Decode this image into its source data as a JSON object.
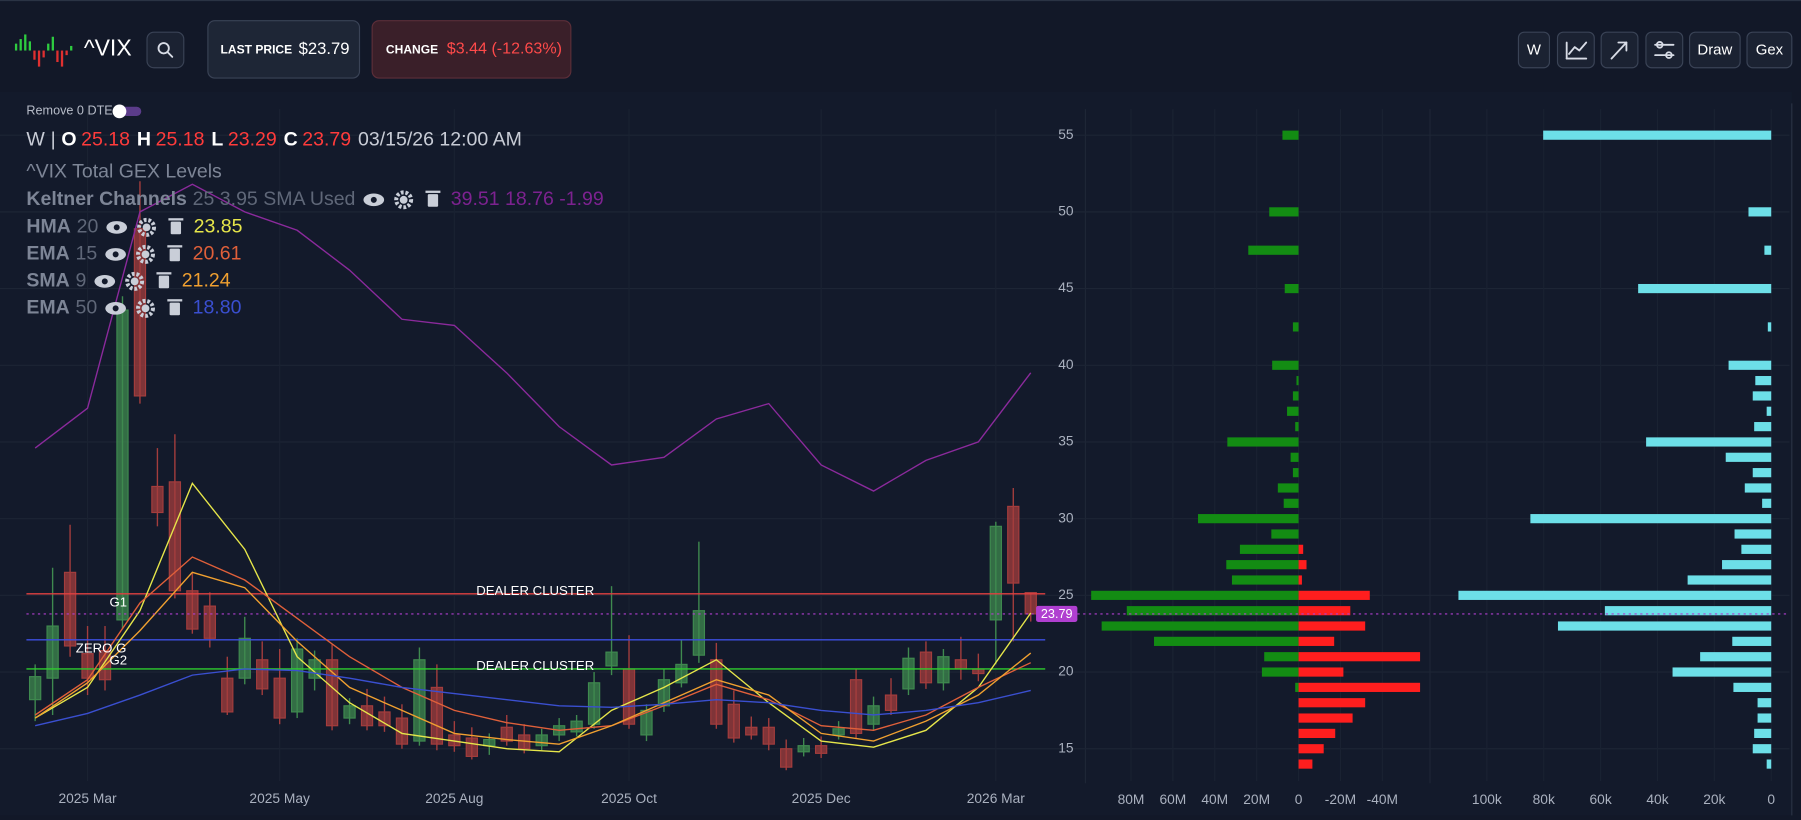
{
  "header": {
    "symbol": "^VIX",
    "last_price_label": "LAST PRICE",
    "last_price": "$23.79",
    "change_label": "CHANGE",
    "change": "$3.44 (-12.63%)",
    "buttons": [
      "W",
      "Draw",
      "Gex"
    ]
  },
  "toggle": "Remove 0 DTE",
  "ohlc": {
    "interval": "W",
    "separator": "|",
    "items": [
      {
        "label": "O",
        "value": "25.18"
      },
      {
        "label": "H",
        "value": "25.18"
      },
      {
        "label": "L",
        "value": "23.29"
      },
      {
        "label": "C",
        "value": "23.79"
      }
    ],
    "datetime": "03/15/26 12:00 AM"
  },
  "legend": {
    "title": "^VIX Total GEX Levels",
    "keltner": {
      "name": "Keltner Channels",
      "params": "25 3.95 SMA Used",
      "values": "39.51 18.76 -1.99",
      "color": "#7d2290"
    },
    "indicators": [
      {
        "name": "HMA",
        "period": "20",
        "value": "23.85",
        "color": "#e6e64a"
      },
      {
        "name": "EMA",
        "period": "15",
        "value": "20.61",
        "color": "#e0603a"
      },
      {
        "name": "SMA",
        "period": "9",
        "value": "21.24",
        "color": "#f0a030"
      },
      {
        "name": "EMA",
        "period": "50",
        "value": "18.80",
        "color": "#3a4fd0"
      }
    ]
  },
  "chart_data": [
    {
      "type": "candlestick",
      "categories": [
        null,
        null,
        null,
        "2025 Mar",
        null,
        null,
        null,
        null,
        null,
        null,
        null,
        null,
        null,
        null,
        "2025 May",
        null,
        null,
        null,
        null,
        null,
        null,
        null,
        null,
        null,
        "2025 Aug",
        null,
        null,
        null,
        null,
        null,
        null,
        null,
        null,
        null,
        "2025 Oct",
        null,
        null,
        null,
        null,
        null,
        null,
        null,
        null,
        null,
        null,
        "2025 Dec",
        null,
        null,
        null,
        null,
        null,
        null,
        null,
        null,
        null,
        "2026 Mar",
        null,
        null
      ],
      "open": [
        18.2,
        19.6,
        26.5,
        21.2,
        21.4,
        23.4,
        48.9,
        32.1,
        32.4,
        25.3,
        24.3,
        19.6,
        19.6,
        20.8,
        19.6,
        17.4,
        19.6,
        20.8,
        17.0,
        17.8,
        17.4,
        17.0,
        15.5,
        19.0,
        15.9,
        15.7,
        15.2,
        16.4,
        15.9,
        15.2,
        15.9,
        16.1,
        16.6,
        20.4,
        20.2,
        15.9,
        17.8,
        19.3,
        21.1,
        20.8,
        17.9,
        16.4,
        16.4,
        15.0,
        14.8,
        15.2,
        15.9,
        19.5,
        16.6,
        18.5,
        18.9,
        21.3,
        19.3,
        20.8,
        20.2,
        23.4,
        30.8,
        25.18
      ],
      "high": [
        20.5,
        26.8,
        29.6,
        23.0,
        23.0,
        44.5,
        52.0,
        34.6,
        35.5,
        26.5,
        25.2,
        21.0,
        23.6,
        22.0,
        21.5,
        22.2,
        21.4,
        21.8,
        18.3,
        18.9,
        18.4,
        17.9,
        21.6,
        20.5,
        16.8,
        16.4,
        16.0,
        17.2,
        16.6,
        16.3,
        17.0,
        17.2,
        20.0,
        25.6,
        22.4,
        17.9,
        20.2,
        22.1,
        28.5,
        21.9,
        18.8,
        17.1,
        17.0,
        15.6,
        15.7,
        15.8,
        16.8,
        20.2,
        18.4,
        19.6,
        21.6,
        22.0,
        21.5,
        22.3,
        21.2,
        29.8,
        32.0,
        25.18
      ],
      "low": [
        16.8,
        17.2,
        21.0,
        18.5,
        18.8,
        22.8,
        37.5,
        29.5,
        24.8,
        22.5,
        21.6,
        17.2,
        19.2,
        18.5,
        16.6,
        17.0,
        18.8,
        16.2,
        16.6,
        16.2,
        16.1,
        15.0,
        15.2,
        14.9,
        14.8,
        14.3,
        14.6,
        15.2,
        14.7,
        14.9,
        15.5,
        15.8,
        16.3,
        19.8,
        16.3,
        15.5,
        17.4,
        19.0,
        20.6,
        16.3,
        15.4,
        15.6,
        14.9,
        13.6,
        14.5,
        14.4,
        15.6,
        15.7,
        16.2,
        17.2,
        18.5,
        18.9,
        18.8,
        19.5,
        19.4,
        20.5,
        22.0,
        23.29
      ],
      "close": [
        19.7,
        23.0,
        21.7,
        19.6,
        19.5,
        43.6,
        38.0,
        30.4,
        25.3,
        22.8,
        22.2,
        17.4,
        22.2,
        18.9,
        17.0,
        21.5,
        20.8,
        16.5,
        17.8,
        16.5,
        16.5,
        15.3,
        20.8,
        15.3,
        15.2,
        14.5,
        15.6,
        15.5,
        15.0,
        15.9,
        16.5,
        16.8,
        19.3,
        21.3,
        16.6,
        17.5,
        19.5,
        20.5,
        24.0,
        16.6,
        15.7,
        15.9,
        15.3,
        13.8,
        15.2,
        14.7,
        16.3,
        16.0,
        17.8,
        17.5,
        20.9,
        19.3,
        21.0,
        20.2,
        19.9,
        29.5,
        25.8,
        23.79
      ],
      "up_color": "#3f8a4f",
      "down_color": "#a43d3d",
      "ylim": [
        12.9,
        56.7
      ],
      "yticks": [
        15,
        20,
        25,
        30,
        35,
        40,
        45,
        50,
        55
      ],
      "grid": true,
      "series": [
        {
          "color": "#8b2a9c",
          "x": [
            0,
            3,
            6,
            9,
            12,
            15,
            18,
            21,
            24,
            27,
            30,
            33,
            36,
            39,
            42,
            45,
            48,
            51,
            54,
            57
          ],
          "values": [
            34.6,
            37.2,
            50,
            51.8,
            50,
            48.8,
            46.2,
            43,
            42.6,
            39.5,
            36,
            33.5,
            34,
            36.5,
            37.5,
            33.5,
            31.8,
            33.8,
            35,
            39.51
          ]
        },
        {
          "color": "#e6e64a",
          "x": [
            0,
            3,
            6,
            9,
            12,
            15,
            18,
            21,
            24,
            27,
            30,
            33,
            36,
            39,
            42,
            45,
            48,
            51,
            54,
            57
          ],
          "values": [
            17,
            19,
            24,
            32.3,
            28,
            21,
            18,
            16,
            15.5,
            15,
            14.8,
            17.5,
            19,
            20.8,
            18,
            15.5,
            15.1,
            16.2,
            19,
            23.85
          ]
        },
        {
          "color": "#e0603a",
          "x": [
            0,
            3,
            6,
            9,
            12,
            15,
            18,
            21,
            24,
            27,
            30,
            33,
            36,
            39,
            42,
            45,
            48,
            51,
            54,
            57
          ],
          "values": [
            17.2,
            19.5,
            24.5,
            27.5,
            26,
            23.5,
            21,
            19,
            17.5,
            16.7,
            16.2,
            16.5,
            17.8,
            19.2,
            18.2,
            16.5,
            16.2,
            17.2,
            19,
            20.61
          ]
        },
        {
          "color": "#f0a030",
          "x": [
            0,
            3,
            6,
            9,
            12,
            15,
            18,
            21,
            24,
            27,
            30,
            33,
            36,
            39,
            42,
            45,
            48,
            51,
            54,
            57
          ],
          "values": [
            17,
            19.3,
            22.7,
            26.5,
            25.5,
            22,
            19,
            17.5,
            16,
            15.6,
            15.3,
            16.5,
            18,
            19.5,
            18.5,
            16,
            15.5,
            16.8,
            18.5,
            21.24
          ]
        },
        {
          "color": "#3a4fd0",
          "x": [
            0,
            3,
            6,
            9,
            12,
            15,
            18,
            21,
            24,
            27,
            30,
            33,
            36,
            39,
            42,
            45,
            48,
            51,
            54,
            57
          ],
          "values": [
            16.5,
            17.3,
            18.5,
            19.8,
            20.2,
            20.1,
            19.6,
            19,
            18.6,
            18.2,
            17.8,
            17.7,
            17.9,
            18.2,
            18,
            17.5,
            17.2,
            17.5,
            18,
            18.8
          ]
        }
      ],
      "levels": [
        {
          "name": "G1",
          "value": 25.1,
          "color": "#e04040",
          "label": "DEALER CLUSTER"
        },
        {
          "name": "ZERO G",
          "value": 22.1,
          "color": "#3d4fe0"
        },
        {
          "name": "G2",
          "value": 20.2,
          "color": "#2ecc2e",
          "label": "DEALER CLUSTER"
        }
      ],
      "last": 23.79,
      "last_color": "#b03fd0"
    },
    {
      "type": "barh",
      "y": [
        55,
        50,
        47.5,
        45,
        42.5,
        40,
        39,
        38,
        37,
        36,
        35,
        34,
        33,
        32,
        31,
        30,
        29,
        28,
        27,
        26,
        25,
        24,
        23,
        22,
        21,
        20,
        19,
        18,
        17,
        16,
        15,
        14
      ],
      "xlim": [
        99000000,
        -60000000
      ],
      "xticks": [
        {
          "value": 80000000,
          "label": "80M"
        },
        {
          "value": 60000000,
          "label": "60M"
        },
        {
          "value": 40000000,
          "label": "40M"
        },
        {
          "value": 20000000,
          "label": "20M"
        },
        0,
        {
          "value": -20000000,
          "label": "-20M"
        },
        {
          "value": -40000000,
          "label": "-40M"
        }
      ],
      "series": [
        {
          "color": "#138c13",
          "values": [
            7700000,
            14000000,
            24000000,
            6600000,
            2700000,
            12600000,
            1000000,
            2700000,
            5500000,
            1600000,
            34000000,
            3800000,
            2700000,
            9900000,
            7100000,
            48000000,
            13000000,
            28000000,
            34500000,
            31800000,
            99000000,
            82000000,
            94000000,
            69000000,
            16400000,
            17500000,
            1600000,
            null,
            null,
            null,
            null,
            null
          ]
        },
        {
          "color": "#ff1e1e",
          "values": [
            null,
            null,
            null,
            null,
            null,
            null,
            null,
            null,
            null,
            null,
            null,
            null,
            null,
            null,
            null,
            null,
            null,
            -2200000,
            -3800000,
            -1600000,
            -34000000,
            -24700000,
            -31800000,
            -17000000,
            -58000000,
            -21400000,
            -58000000,
            -31800000,
            -25800000,
            -17500000,
            -12000000,
            -6600000
          ]
        }
      ]
    },
    {
      "type": "barh",
      "y": [
        55,
        50,
        47.5,
        45,
        42.5,
        40,
        39,
        38,
        37,
        36,
        35,
        34,
        33,
        32,
        31,
        30,
        29,
        28,
        27,
        26,
        25,
        24,
        23,
        22,
        21,
        20,
        19,
        18,
        17,
        16,
        15,
        14
      ],
      "xlim": [
        120000,
        -3200
      ],
      "xticks": [
        {
          "value": 100000,
          "label": "100k"
        },
        {
          "value": 80000,
          "label": "80k"
        },
        {
          "value": 60000,
          "label": "60k"
        },
        {
          "value": 40000,
          "label": "40k"
        },
        {
          "value": 20000,
          "label": "20k"
        },
        0
      ],
      "series": [
        {
          "color": "#6ddfe8",
          "values": [
            80200,
            8000,
            2400,
            46800,
            1200,
            15000,
            5600,
            6500,
            1600,
            6000,
            44000,
            16000,
            6500,
            9300,
            3200,
            84700,
            12900,
            10500,
            17300,
            29400,
            110000,
            58500,
            75000,
            13700,
            25000,
            34700,
            13300,
            4800,
            4800,
            6000,
            6500,
            1600
          ]
        }
      ]
    }
  ]
}
